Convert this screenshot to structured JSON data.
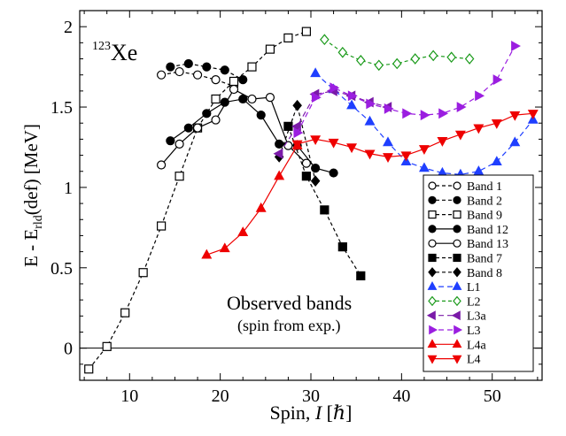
{
  "chart_data": {
    "type": "line",
    "title": "",
    "nucleus": {
      "mass": "123",
      "element": "Xe"
    },
    "xlabel": {
      "prefix": "Spin, ",
      "var": "I",
      "suffix": " [ℏ]"
    },
    "ylabel": {
      "prefix": "E - E",
      "sub": "rld",
      "suffix": "(def) [MeV]"
    },
    "xlim": [
      4.5,
      55.5
    ],
    "ylim": [
      -0.2,
      2.1
    ],
    "xticks": [
      10,
      20,
      30,
      40,
      50
    ],
    "yticks": [
      0,
      0.5,
      1,
      1.5,
      2
    ],
    "ytick_labels": [
      "0",
      "0.5",
      "1",
      "1.5",
      "2"
    ],
    "zero_line": true,
    "annotation": {
      "line1": "Observed bands",
      "line2": "(spin from exp.)"
    },
    "legend_position": "bottom-right",
    "series": [
      {
        "name": "Band 1",
        "marker": "circle",
        "filled": false,
        "color": "#000000",
        "dash": "4,3",
        "points": [
          [
            13.5,
            1.7
          ],
          [
            15.5,
            1.72
          ],
          [
            17.5,
            1.7
          ],
          [
            19.5,
            1.67
          ],
          [
            21.5,
            1.63
          ]
        ]
      },
      {
        "name": "Band 2",
        "marker": "circle",
        "filled": true,
        "color": "#000000",
        "dash": "4,3",
        "points": [
          [
            14.5,
            1.75
          ],
          [
            16.5,
            1.77
          ],
          [
            18.5,
            1.75
          ],
          [
            20.5,
            1.73
          ],
          [
            22.5,
            1.67
          ]
        ]
      },
      {
        "name": "Band 9",
        "marker": "square",
        "filled": false,
        "color": "#000000",
        "dash": "4,3",
        "points": [
          [
            5.5,
            -0.13
          ],
          [
            7.5,
            0.01
          ],
          [
            9.5,
            0.22
          ],
          [
            11.5,
            0.47
          ],
          [
            13.5,
            0.76
          ],
          [
            15.5,
            1.07
          ],
          [
            17.5,
            1.37
          ],
          [
            19.5,
            1.55
          ],
          [
            21.5,
            1.66
          ],
          [
            23.5,
            1.75
          ],
          [
            25.5,
            1.86
          ],
          [
            27.5,
            1.93
          ],
          [
            29.5,
            1.97
          ]
        ]
      },
      {
        "name": "Band 12",
        "marker": "circle",
        "filled": true,
        "color": "#000000",
        "dash": "",
        "points": [
          [
            14.5,
            1.29
          ],
          [
            16.5,
            1.37
          ],
          [
            18.5,
            1.46
          ],
          [
            20.5,
            1.53
          ],
          [
            22.5,
            1.55
          ],
          [
            24.5,
            1.45
          ],
          [
            26.5,
            1.27
          ],
          [
            28.5,
            1.26
          ],
          [
            30.5,
            1.12
          ],
          [
            32.5,
            1.09
          ]
        ]
      },
      {
        "name": "Band 13",
        "marker": "circle",
        "filled": false,
        "color": "#000000",
        "dash": "",
        "points": [
          [
            13.5,
            1.14
          ],
          [
            15.5,
            1.27
          ],
          [
            17.5,
            1.37
          ],
          [
            19.5,
            1.42
          ],
          [
            21.5,
            1.61
          ],
          [
            23.5,
            1.55
          ],
          [
            25.5,
            1.56
          ],
          [
            27.5,
            1.26
          ],
          [
            29.5,
            1.15
          ]
        ]
      },
      {
        "name": "Band 7",
        "marker": "square",
        "filled": true,
        "color": "#000000",
        "dash": "4,3",
        "points": [
          [
            27.5,
            1.38
          ],
          [
            29.5,
            1.07
          ],
          [
            31.5,
            0.86
          ],
          [
            33.5,
            0.63
          ],
          [
            35.5,
            0.45
          ]
        ]
      },
      {
        "name": "Band 8",
        "marker": "diamond",
        "filled": true,
        "color": "#000000",
        "dash": "4,3",
        "points": [
          [
            26.5,
            1.19
          ],
          [
            28.5,
            1.51
          ],
          [
            30.5,
            1.04
          ]
        ]
      },
      {
        "name": "L1",
        "marker": "triangle-up",
        "filled": true,
        "color": "#1f3fff",
        "dash": "6,4",
        "points": [
          [
            30.5,
            1.71
          ],
          [
            32.5,
            1.61
          ],
          [
            34.5,
            1.51
          ],
          [
            36.5,
            1.41
          ],
          [
            38.5,
            1.28
          ],
          [
            40.5,
            1.16
          ],
          [
            42.5,
            1.12
          ],
          [
            44.5,
            1.09
          ],
          [
            46.5,
            1.08
          ],
          [
            48.5,
            1.1
          ],
          [
            50.5,
            1.16
          ],
          [
            52.5,
            1.28
          ],
          [
            54.5,
            1.42
          ]
        ]
      },
      {
        "name": "L2",
        "marker": "diamond",
        "filled": false,
        "color": "#1a9a1a",
        "dash": "4,3",
        "points": [
          [
            31.5,
            1.92
          ],
          [
            33.5,
            1.84
          ],
          [
            35.5,
            1.79
          ],
          [
            37.5,
            1.76
          ],
          [
            39.5,
            1.77
          ],
          [
            41.5,
            1.8
          ],
          [
            43.5,
            1.82
          ],
          [
            45.5,
            1.81
          ],
          [
            47.5,
            1.8
          ]
        ]
      },
      {
        "name": "L3a",
        "marker": "triangle-left",
        "filled": true,
        "color": "#7a1aa8",
        "dash": "6,4",
        "points": [
          [
            26.5,
            1.21
          ],
          [
            28.5,
            1.38
          ],
          [
            30.5,
            1.58
          ],
          [
            32.5,
            1.6
          ],
          [
            34.5,
            1.57
          ],
          [
            36.5,
            1.53
          ],
          [
            38.5,
            1.5
          ]
        ]
      },
      {
        "name": "L3",
        "marker": "triangle-right",
        "filled": true,
        "color": "#9b1ee0",
        "dash": "6,4",
        "points": [
          [
            28.5,
            1.34
          ],
          [
            30.5,
            1.56
          ],
          [
            32.5,
            1.62
          ],
          [
            34.5,
            1.57
          ],
          [
            36.5,
            1.52
          ],
          [
            38.5,
            1.49
          ],
          [
            40.5,
            1.46
          ],
          [
            42.5,
            1.45
          ],
          [
            44.5,
            1.46
          ],
          [
            46.5,
            1.5
          ],
          [
            48.5,
            1.57
          ],
          [
            50.5,
            1.67
          ],
          [
            52.5,
            1.88
          ]
        ]
      },
      {
        "name": "L4a",
        "marker": "triangle-up",
        "filled": true,
        "color": "#ee0000",
        "dash": "",
        "points": [
          [
            18.5,
            0.58
          ],
          [
            20.5,
            0.62
          ],
          [
            22.5,
            0.72
          ],
          [
            24.5,
            0.87
          ],
          [
            26.5,
            1.07
          ],
          [
            28.5,
            1.26
          ]
        ]
      },
      {
        "name": "L4",
        "marker": "triangle-down",
        "filled": true,
        "color": "#ee0000",
        "dash": "",
        "points": [
          [
            28.5,
            1.27
          ],
          [
            30.5,
            1.3
          ],
          [
            32.5,
            1.28
          ],
          [
            34.5,
            1.25
          ],
          [
            36.5,
            1.21
          ],
          [
            38.5,
            1.19
          ],
          [
            40.5,
            1.2
          ],
          [
            42.5,
            1.24
          ],
          [
            44.5,
            1.29
          ],
          [
            46.5,
            1.33
          ],
          [
            48.5,
            1.37
          ],
          [
            50.5,
            1.4
          ],
          [
            52.5,
            1.45
          ],
          [
            54.5,
            1.46
          ]
        ]
      }
    ]
  }
}
